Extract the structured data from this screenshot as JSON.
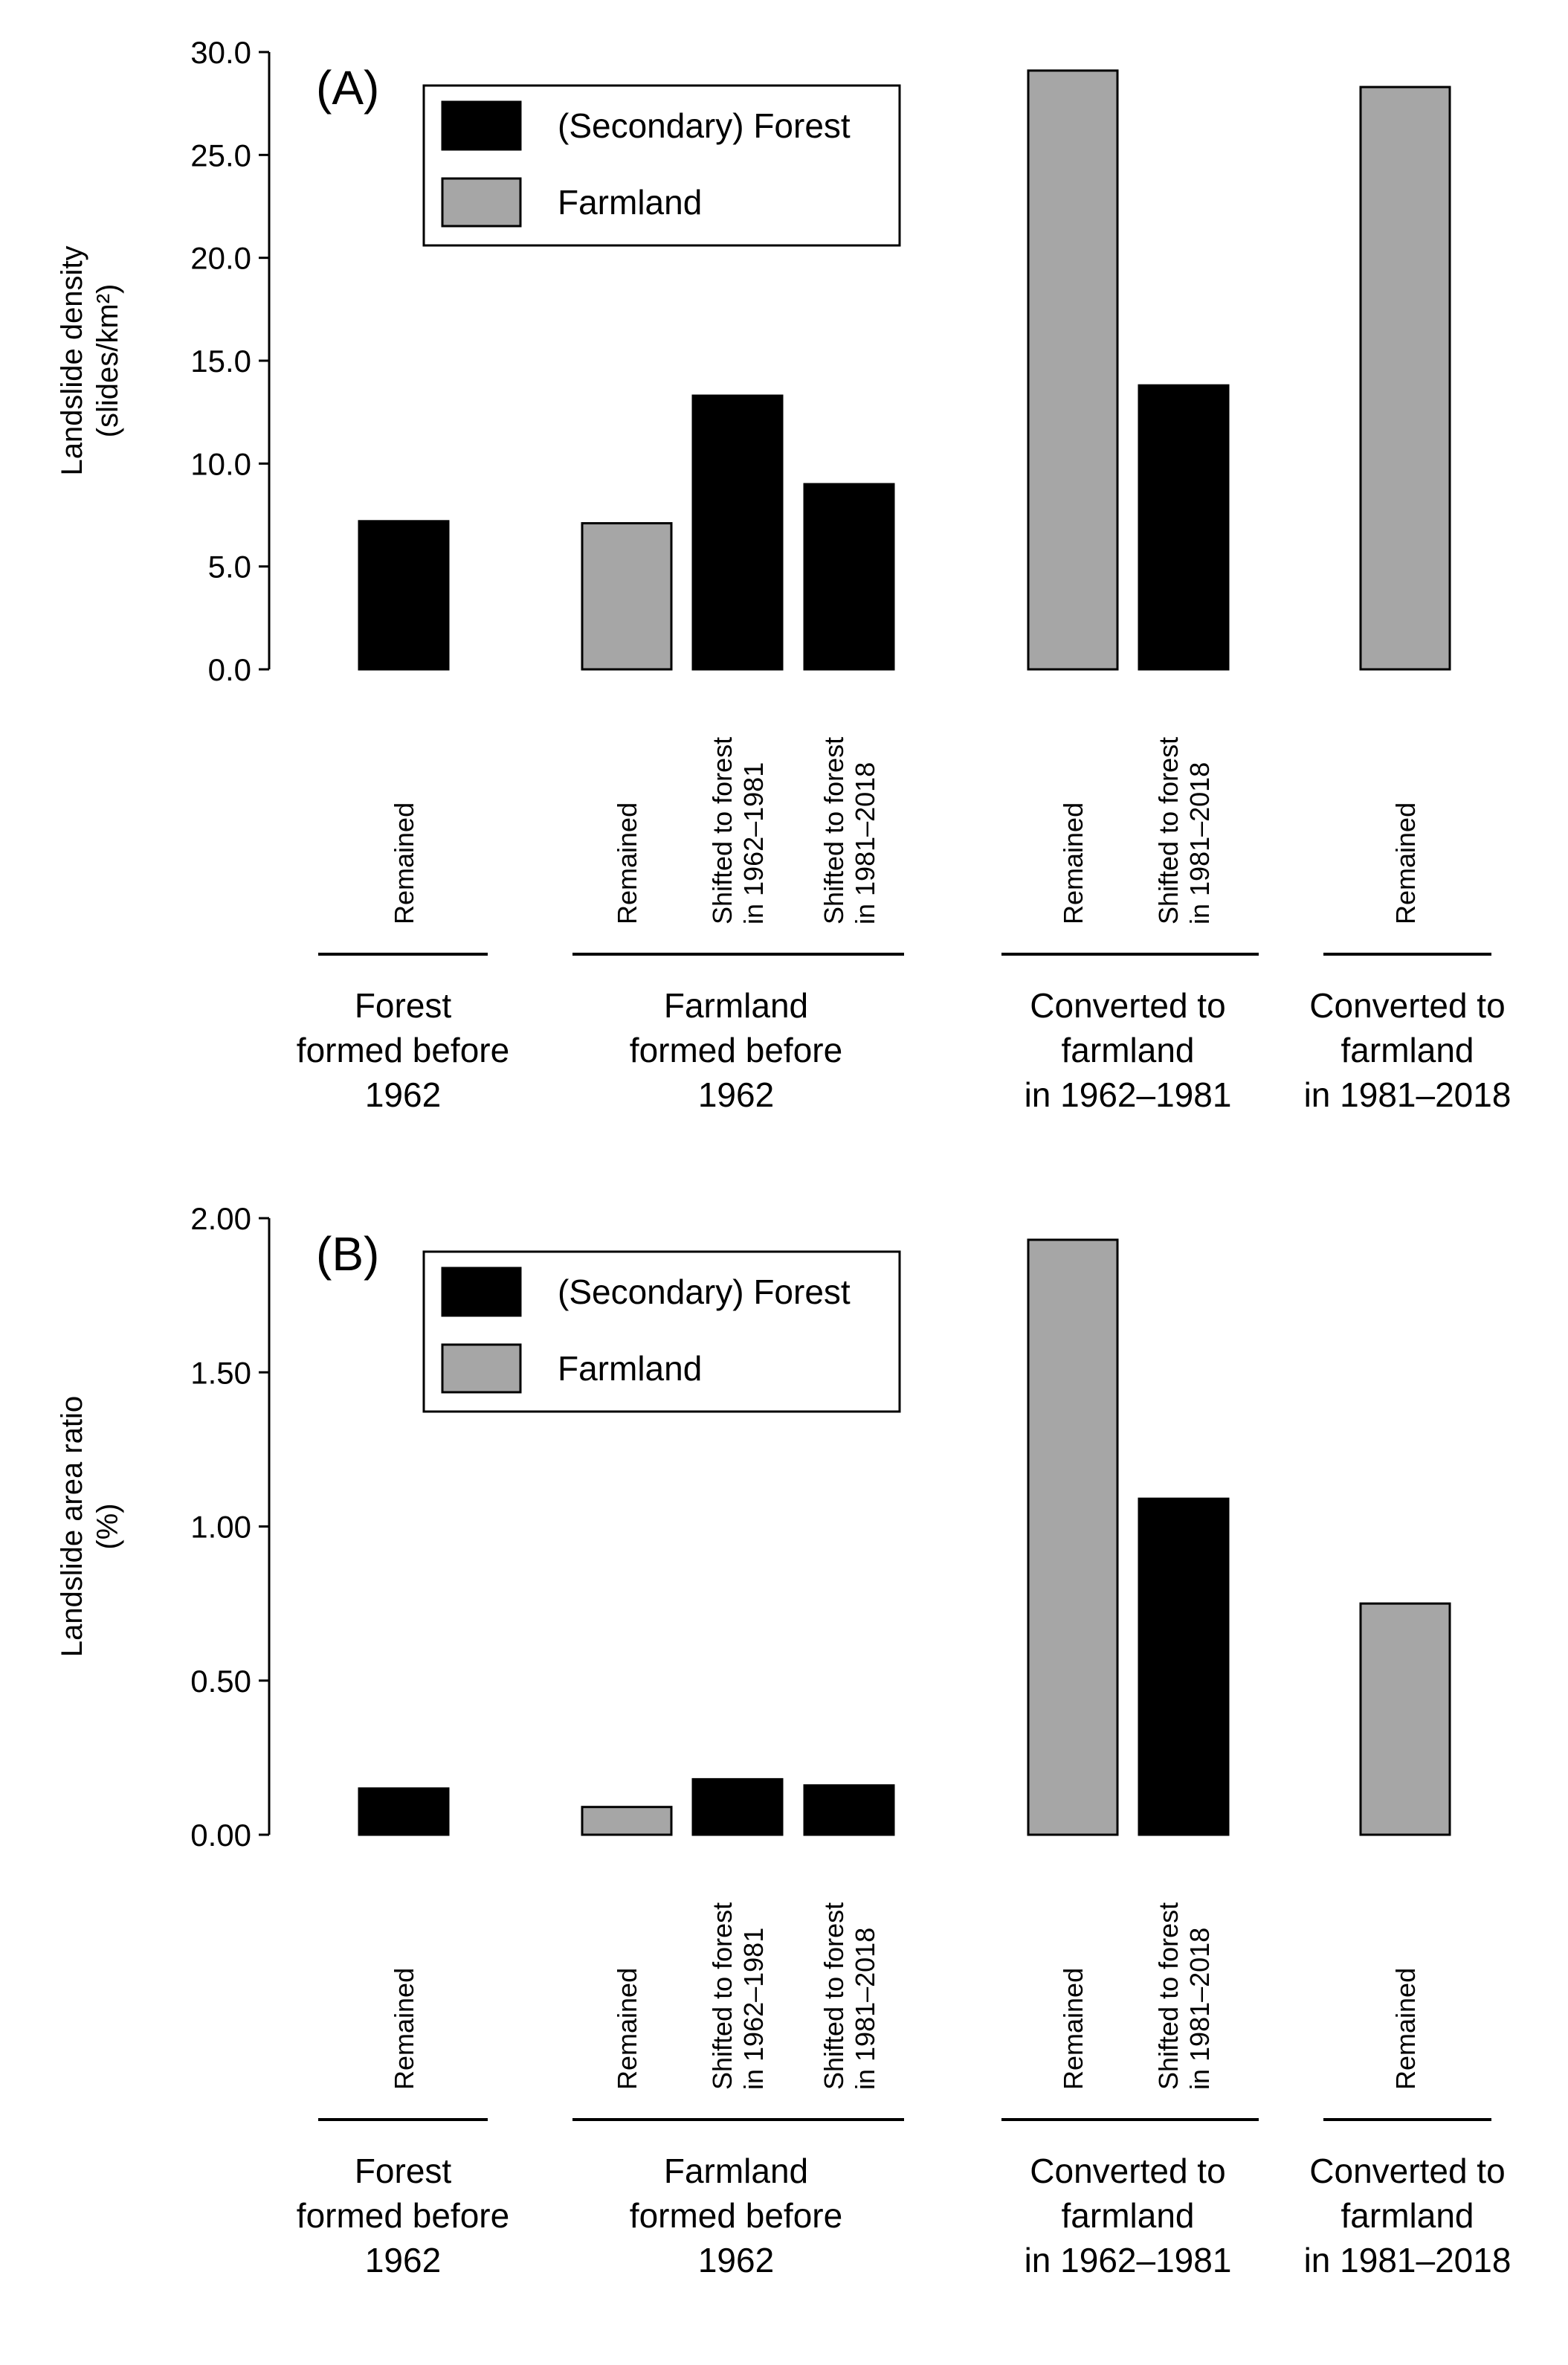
{
  "colors": {
    "forest": "#000000",
    "farmland": "#a6a6a6",
    "stroke": "#000000"
  },
  "legend": {
    "items": [
      {
        "key": "forest",
        "label": "(Secondary) Forest"
      },
      {
        "key": "farmland",
        "label": "Farmland"
      }
    ]
  },
  "groups": [
    {
      "lines": [
        "Forest",
        "formed before",
        "1962"
      ]
    },
    {
      "lines": [
        "Farmland",
        "formed before",
        "1962"
      ]
    },
    {
      "lines": [
        "Converted to",
        "farmland",
        "in 1962–1981"
      ]
    },
    {
      "lines": [
        "Converted to",
        "farmland",
        "in 1981–2018"
      ]
    }
  ],
  "chart_data": [
    {
      "type": "bar",
      "panel_label": "(A)",
      "ylabel_lines": [
        "Landslide density",
        "(slides/km²)"
      ],
      "ylim": [
        0,
        30
      ],
      "yticks": [
        "0.0",
        "5.0",
        "10.0",
        "15.0",
        "20.0",
        "25.0",
        "30.0"
      ],
      "legend_position": "top-left",
      "bars": [
        {
          "group": 0,
          "category_lines": [
            "Remained"
          ],
          "type": "forest",
          "value": 7.2
        },
        {
          "group": 1,
          "category_lines": [
            "Remained"
          ],
          "type": "farmland",
          "value": 7.1
        },
        {
          "group": 1,
          "category_lines": [
            "Shifted to forest",
            "in 1962–1981"
          ],
          "type": "forest",
          "value": 13.3
        },
        {
          "group": 1,
          "category_lines": [
            "Shifted to forest",
            "in 1981–2018"
          ],
          "type": "forest",
          "value": 9.0
        },
        {
          "group": 2,
          "category_lines": [
            "Remained"
          ],
          "type": "farmland",
          "value": 29.1
        },
        {
          "group": 2,
          "category_lines": [
            "Shifted to forest",
            "in 1981–2018"
          ],
          "type": "forest",
          "value": 13.8
        },
        {
          "group": 3,
          "category_lines": [
            "Remained"
          ],
          "type": "farmland",
          "value": 28.3
        }
      ]
    },
    {
      "type": "bar",
      "panel_label": "(B)",
      "ylabel_lines": [
        "Landslide area ratio",
        "(%)"
      ],
      "ylim": [
        0,
        2
      ],
      "yticks": [
        "0.00",
        "0.50",
        "1.00",
        "1.50",
        "2.00"
      ],
      "legend_position": "top-left",
      "bars": [
        {
          "group": 0,
          "category_lines": [
            "Remained"
          ],
          "type": "forest",
          "value": 0.15
        },
        {
          "group": 1,
          "category_lines": [
            "Remained"
          ],
          "type": "farmland",
          "value": 0.09
        },
        {
          "group": 1,
          "category_lines": [
            "Shifted to forest",
            "in 1962–1981"
          ],
          "type": "forest",
          "value": 0.18
        },
        {
          "group": 1,
          "category_lines": [
            "Shifted to forest",
            "in 1981–2018"
          ],
          "type": "forest",
          "value": 0.16
        },
        {
          "group": 2,
          "category_lines": [
            "Remained"
          ],
          "type": "farmland",
          "value": 1.93
        },
        {
          "group": 2,
          "category_lines": [
            "Shifted to forest",
            "in 1981–2018"
          ],
          "type": "forest",
          "value": 1.09
        },
        {
          "group": 3,
          "category_lines": [
            "Remained"
          ],
          "type": "farmland",
          "value": 0.75
        }
      ]
    }
  ]
}
